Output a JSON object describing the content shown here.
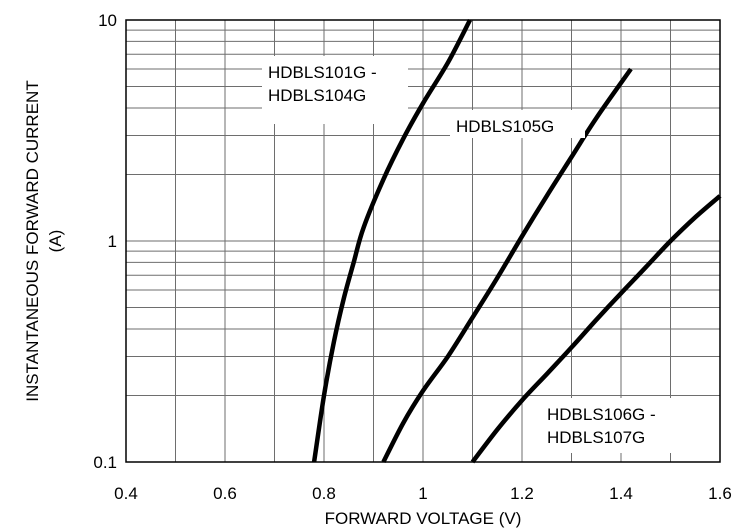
{
  "chart_data": {
    "type": "line",
    "xlabel": "FORWARD VOLTAGE (V)",
    "ylabel_lines": [
      "INSTANTANEOUS FORWARD CURRENT",
      "(A)"
    ],
    "x_ticks": [
      "0.4",
      "0.6",
      "0.8",
      "1",
      "1.2",
      "1.4",
      "1.6"
    ],
    "y_ticks": [
      "0.1",
      "1",
      "10"
    ],
    "xlim": [
      0.4,
      1.6
    ],
    "ylim": [
      0.1,
      10
    ],
    "y_scale": "log",
    "grid": true,
    "series": [
      {
        "label_lines": [
          "HDBLS101G -",
          "HDBLS104G"
        ],
        "points": [
          [
            0.78,
            0.1
          ],
          [
            0.8,
            0.2
          ],
          [
            0.82,
            0.35
          ],
          [
            0.84,
            0.55
          ],
          [
            0.86,
            0.8
          ],
          [
            0.88,
            1.15
          ],
          [
            0.92,
            1.9
          ],
          [
            0.96,
            2.9
          ],
          [
            1.0,
            4.2
          ],
          [
            1.05,
            6.4
          ],
          [
            1.095,
            10.0
          ]
        ]
      },
      {
        "label_lines": [
          "HDBLS105G"
        ],
        "points": [
          [
            0.92,
            0.1
          ],
          [
            0.96,
            0.15
          ],
          [
            1.0,
            0.21
          ],
          [
            1.05,
            0.3
          ],
          [
            1.1,
            0.45
          ],
          [
            1.15,
            0.68
          ],
          [
            1.2,
            1.05
          ],
          [
            1.25,
            1.6
          ],
          [
            1.3,
            2.4
          ],
          [
            1.35,
            3.6
          ],
          [
            1.42,
            6.0
          ]
        ]
      },
      {
        "label_lines": [
          "HDBLS106G -",
          "HDBLS107G"
        ],
        "points": [
          [
            1.1,
            0.1
          ],
          [
            1.15,
            0.14
          ],
          [
            1.2,
            0.19
          ],
          [
            1.25,
            0.25
          ],
          [
            1.3,
            0.33
          ],
          [
            1.35,
            0.44
          ],
          [
            1.4,
            0.58
          ],
          [
            1.45,
            0.76
          ],
          [
            1.5,
            1.0
          ],
          [
            1.55,
            1.28
          ],
          [
            1.6,
            1.6
          ]
        ]
      }
    ]
  }
}
